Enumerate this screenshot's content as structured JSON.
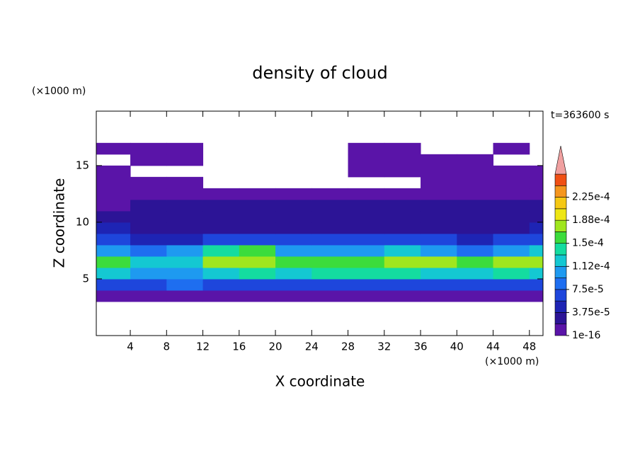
{
  "chart_data": {
    "type": "contour",
    "title": "density of cloud",
    "x_label": "X coordinate",
    "y_label": "Z coordinate",
    "x_unit": "(×1000 m)",
    "y_unit": "(×1000 m)",
    "annotation": "t=363600 s",
    "xlim": [
      0.25,
      49.5
    ],
    "ylim": [
      0,
      19.8
    ],
    "xticks": [
      4,
      8,
      12,
      16,
      20,
      24,
      28,
      32,
      36,
      40,
      44,
      48
    ],
    "yticks": [
      5,
      10,
      15
    ],
    "x_edges": [
      0.25,
      4,
      8,
      12,
      16,
      20,
      24,
      28,
      32,
      36,
      40,
      44,
      48,
      49.5
    ],
    "z_edges": [
      3,
      4,
      5,
      6,
      7,
      8,
      9,
      10,
      11,
      12,
      13,
      14,
      15,
      16,
      17
    ],
    "values": [
      [
        1.5e-05,
        1.5e-05,
        1.5e-05,
        1.5e-05,
        1.5e-05,
        1.5e-05,
        1.5e-05,
        1.5e-05,
        1.5e-05,
        1.5e-05,
        1.5e-05,
        1.5e-05,
        1.5e-05
      ],
      [
        6e-05,
        6e-05,
        8e-05,
        6e-05,
        6e-05,
        6e-05,
        6e-05,
        6e-05,
        6e-05,
        6e-05,
        6e-05,
        6e-05,
        6e-05
      ],
      [
        0.00013,
        0.00011,
        0.0001,
        0.00013,
        0.000135,
        0.00013,
        0.000135,
        0.000135,
        0.00014,
        0.00013,
        0.00012,
        0.000135,
        0.00013
      ],
      [
        0.00016,
        0.00013,
        0.00012,
        0.000175,
        0.00018,
        0.00016,
        0.000155,
        0.00016,
        0.000175,
        0.00017,
        0.00015,
        0.00017,
        0.000175
      ],
      [
        0.0001,
        9e-05,
        0.00011,
        0.00014,
        0.00015,
        0.00011,
        0.0001,
        0.00011,
        0.00012,
        0.0001,
        9e-05,
        0.0001,
        0.00012
      ],
      [
        6e-05,
        4e-05,
        5e-05,
        6e-05,
        7e-05,
        6e-05,
        6e-05,
        6e-05,
        6e-05,
        6e-05,
        5e-05,
        6e-05,
        7e-05
      ],
      [
        4e-05,
        3e-05,
        3e-05,
        3e-05,
        3e-05,
        3e-05,
        3e-05,
        3e-05,
        3e-05,
        3e-05,
        3e-05,
        3e-05,
        4e-05
      ],
      [
        2.5e-05,
        2e-05,
        2.5e-05,
        2.5e-05,
        2.5e-05,
        2.5e-05,
        2.5e-05,
        2.5e-05,
        2.5e-05,
        2.5e-05,
        2.5e-05,
        2.5e-05,
        2.5e-05
      ],
      [
        1.5e-05,
        2e-05,
        2e-05,
        2e-05,
        2e-05,
        2e-05,
        2e-05,
        2e-05,
        2e-05,
        2e-05,
        2e-05,
        2e-05,
        2e-05
      ],
      [
        1e-05,
        1e-05,
        1e-05,
        1e-05,
        1e-05,
        1e-05,
        1e-05,
        1e-05,
        1e-05,
        1e-05,
        1e-05,
        1e-05,
        1e-05
      ],
      [
        1e-05,
        1e-05,
        1e-05,
        null,
        null,
        null,
        null,
        null,
        null,
        1e-05,
        1e-05,
        1e-05,
        1e-05
      ],
      [
        1e-05,
        null,
        null,
        null,
        null,
        null,
        null,
        1e-05,
        1e-05,
        1e-05,
        1e-05,
        1e-05,
        1e-05
      ],
      [
        null,
        1e-05,
        1e-05,
        null,
        null,
        null,
        null,
        1e-05,
        1e-05,
        1e-05,
        1e-05,
        null,
        null
      ],
      [
        1e-05,
        1e-05,
        1e-05,
        null,
        null,
        null,
        null,
        1e-05,
        1e-05,
        null,
        null,
        1e-05,
        null
      ]
    ],
    "colorbar": {
      "zlim": [
        1e-16,
        0.0002625
      ],
      "levels": [
        1e-16,
        1.875e-05,
        3.75e-05,
        5.625e-05,
        7.5e-05,
        9.375e-05,
        0.0001125,
        0.00013125,
        0.00015,
        0.00016875,
        0.0001875,
        0.00020625,
        0.000225,
        0.00024375
      ],
      "colors": [
        "#5a14a8",
        "#2c1496",
        "#1e24b4",
        "#1e46dc",
        "#1e6ef0",
        "#1e9af0",
        "#14c8d2",
        "#14dca0",
        "#3cdc3c",
        "#a0e61e",
        "#eee614",
        "#f5c814",
        "#f5961e",
        "#f05014"
      ],
      "extend_color": "#f0a0a0",
      "ticks": [
        {
          "value": 1e-16,
          "label": "1e-16"
        },
        {
          "value": 3.75e-05,
          "label": "3.75e-5"
        },
        {
          "value": 7.5e-05,
          "label": "7.5e-5"
        },
        {
          "value": 0.0001125,
          "label": "1.12e-4"
        },
        {
          "value": 0.00015,
          "label": "1.5e-4"
        },
        {
          "value": 0.0001875,
          "label": "1.88e-4"
        },
        {
          "value": 0.000225,
          "label": "2.25e-4"
        }
      ]
    }
  }
}
